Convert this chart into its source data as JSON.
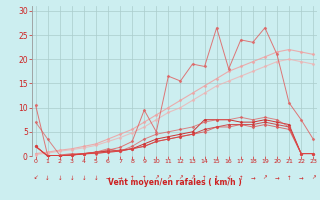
{
  "x": [
    0,
    1,
    2,
    3,
    4,
    5,
    6,
    7,
    8,
    9,
    10,
    11,
    12,
    13,
    14,
    15,
    16,
    17,
    18,
    19,
    20,
    21,
    22,
    23
  ],
  "series": [
    {
      "name": "regression1",
      "color": "#f0a0a0",
      "alpha": 0.85,
      "lw": 0.8,
      "marker": "D",
      "ms": 1.5,
      "y": [
        0.5,
        0.8,
        1.2,
        1.5,
        2.0,
        2.5,
        3.5,
        4.5,
        5.5,
        7.0,
        8.5,
        10.0,
        11.5,
        13.0,
        14.5,
        16.0,
        17.5,
        18.5,
        19.5,
        20.5,
        21.5,
        22.0,
        21.5,
        21.0
      ]
    },
    {
      "name": "regression2",
      "color": "#f0b0b0",
      "alpha": 0.75,
      "lw": 0.8,
      "marker": "D",
      "ms": 1.5,
      "y": [
        0.3,
        0.6,
        1.0,
        1.3,
        1.7,
        2.2,
        3.0,
        3.8,
        4.8,
        6.0,
        7.5,
        9.0,
        10.0,
        11.5,
        13.0,
        14.5,
        15.5,
        16.5,
        17.5,
        18.5,
        19.5,
        20.0,
        19.5,
        19.0
      ]
    },
    {
      "name": "jagged1",
      "color": "#e06060",
      "alpha": 0.85,
      "lw": 0.7,
      "marker": "D",
      "ms": 1.5,
      "y": [
        10.5,
        0.1,
        0.1,
        0.2,
        0.5,
        0.8,
        1.2,
        1.8,
        3.0,
        9.5,
        5.0,
        16.5,
        15.5,
        19.0,
        18.5,
        26.5,
        18.0,
        24.0,
        23.5,
        26.5,
        21.0,
        11.0,
        7.5,
        3.5
      ]
    },
    {
      "name": "jagged2",
      "color": "#cc3333",
      "alpha": 1.0,
      "lw": 0.7,
      "marker": "D",
      "ms": 1.5,
      "y": [
        2.0,
        0.0,
        0.1,
        0.2,
        0.5,
        0.8,
        1.0,
        1.2,
        1.5,
        2.5,
        3.5,
        4.0,
        4.5,
        5.0,
        7.5,
        7.5,
        7.5,
        7.0,
        7.0,
        7.5,
        7.0,
        6.5,
        0.5,
        0.5
      ]
    },
    {
      "name": "jagged3",
      "color": "#cc3333",
      "alpha": 0.85,
      "lw": 0.7,
      "marker": "D",
      "ms": 1.5,
      "y": [
        2.0,
        0.0,
        0.1,
        0.2,
        0.4,
        0.6,
        0.8,
        1.0,
        1.5,
        2.0,
        3.0,
        3.5,
        4.0,
        4.5,
        5.5,
        6.0,
        6.5,
        6.5,
        6.5,
        7.0,
        6.5,
        6.0,
        0.5,
        0.5
      ]
    },
    {
      "name": "jagged4",
      "color": "#dd5555",
      "alpha": 0.7,
      "lw": 0.7,
      "marker": "D",
      "ms": 1.5,
      "y": [
        7.0,
        3.5,
        0.2,
        0.5,
        0.5,
        0.8,
        1.5,
        1.0,
        2.0,
        3.5,
        4.5,
        5.0,
        5.5,
        6.0,
        7.0,
        7.5,
        7.5,
        8.0,
        7.5,
        8.0,
        7.5,
        6.0,
        0.5,
        0.5
      ]
    },
    {
      "name": "jagged5",
      "color": "#dd4444",
      "alpha": 0.75,
      "lw": 0.7,
      "marker": "D",
      "ms": 1.5,
      "y": [
        2.0,
        0.0,
        0.1,
        0.2,
        0.5,
        0.5,
        0.8,
        1.0,
        1.5,
        2.0,
        3.0,
        3.5,
        4.0,
        4.5,
        5.0,
        6.0,
        6.0,
        6.5,
        6.0,
        6.5,
        6.0,
        5.5,
        0.5,
        0.5
      ]
    }
  ],
  "xlabel": "Vent moyen/en rafales ( km/h )",
  "xlim": [
    -0.3,
    23.3
  ],
  "ylim": [
    0,
    31
  ],
  "yticks": [
    0,
    5,
    10,
    15,
    20,
    25,
    30
  ],
  "xticks": [
    0,
    1,
    2,
    3,
    4,
    5,
    6,
    7,
    8,
    9,
    10,
    11,
    12,
    13,
    14,
    15,
    16,
    17,
    18,
    19,
    20,
    21,
    22,
    23
  ],
  "bg_color": "#cceef0",
  "grid_color": "#aacccc",
  "tick_color": "#cc2222",
  "label_color": "#cc2222",
  "arrows": [
    "↙",
    "↓",
    "↓",
    "↓",
    "↓",
    "↓",
    "→",
    "→",
    "↑",
    "↑",
    "↗",
    "↗",
    "↗",
    "↗",
    "↑",
    "↑",
    "↙",
    "↑",
    "→",
    "↗",
    "→",
    "↑",
    "→",
    "↗"
  ]
}
